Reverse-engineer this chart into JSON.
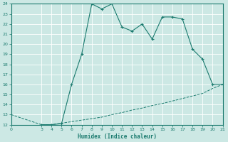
{
  "xlabel": "Humidex (Indice chaleur)",
  "background_color": "#cce8e4",
  "grid_color": "#aed4cf",
  "line_color": "#1a7a6e",
  "curve_x": [
    3,
    4,
    5,
    6,
    7,
    8,
    9,
    10,
    11,
    12,
    13,
    14,
    15,
    16,
    17,
    18,
    19,
    20,
    21
  ],
  "curve_y": [
    12,
    12,
    12.1,
    16,
    19,
    24,
    23.5,
    24,
    21.7,
    21.3,
    22,
    20.5,
    22.7,
    22.7,
    22.5,
    19.5,
    18.5,
    16,
    16
  ],
  "line2_x": [
    0,
    3,
    4,
    5,
    6,
    7,
    8,
    9,
    10,
    11,
    12,
    13,
    14,
    15,
    16,
    17,
    18,
    19,
    20,
    21
  ],
  "line2_y": [
    13,
    12,
    12,
    12.15,
    12.3,
    12.45,
    12.6,
    12.75,
    13.0,
    13.2,
    13.45,
    13.65,
    13.9,
    14.1,
    14.35,
    14.6,
    14.85,
    15.1,
    15.6,
    16.0
  ],
  "xlim": [
    0,
    21
  ],
  "ylim": [
    12,
    24
  ],
  "yticks": [
    12,
    13,
    14,
    15,
    16,
    17,
    18,
    19,
    20,
    21,
    22,
    23,
    24
  ],
  "xticks": [
    0,
    3,
    4,
    5,
    6,
    7,
    8,
    9,
    10,
    11,
    12,
    13,
    14,
    15,
    16,
    17,
    18,
    19,
    20,
    21
  ]
}
